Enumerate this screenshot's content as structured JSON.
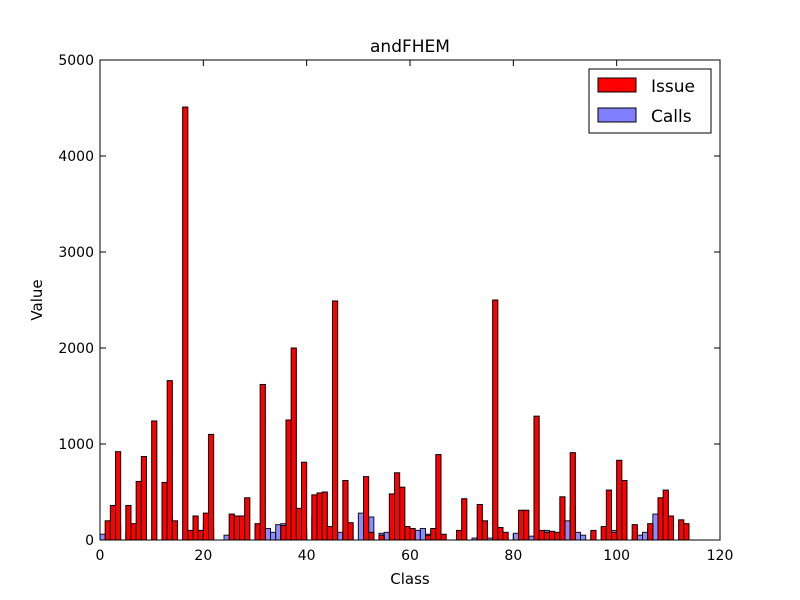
{
  "chart_data": {
    "type": "bar",
    "title": "andFHEM",
    "xlabel": "Class",
    "ylabel": "Value",
    "xlim": [
      0,
      120
    ],
    "ylim": [
      0,
      5000
    ],
    "xticks": [
      "0",
      "20",
      "40",
      "60",
      "80",
      "100",
      "120"
    ],
    "yticks": [
      "0",
      "1000",
      "2000",
      "3000",
      "4000",
      "5000"
    ],
    "legend_position": "top-right",
    "grid": false,
    "series": [
      {
        "name": "Issue",
        "color": "#ff0000",
        "values": [
          0,
          200,
          360,
          920,
          0,
          360,
          170,
          610,
          870,
          0,
          1240,
          0,
          600,
          1660,
          200,
          0,
          4510,
          100,
          250,
          100,
          280,
          1100,
          0,
          0,
          0,
          270,
          250,
          250,
          440,
          0,
          170,
          1620,
          0,
          0,
          0,
          150,
          1250,
          2000,
          330,
          810,
          0,
          470,
          490,
          500,
          140,
          2490,
          0,
          620,
          180,
          0,
          0,
          660,
          80,
          0,
          50,
          0,
          480,
          700,
          550,
          140,
          120,
          0,
          0,
          50,
          120,
          890,
          60,
          0,
          0,
          100,
          430,
          0,
          0,
          370,
          200,
          0,
          2500,
          130,
          80,
          0,
          0,
          310,
          310,
          0,
          1290,
          100,
          80,
          90,
          80,
          450,
          0,
          910,
          0,
          0,
          0,
          100,
          0,
          140,
          520,
          80,
          830,
          620,
          0,
          160,
          0,
          0,
          170,
          0,
          440,
          520,
          250,
          0,
          210,
          170,
          0
        ]
      },
      {
        "name": "Calls",
        "color": "#8080ff",
        "values": [
          60,
          0,
          0,
          150,
          0,
          80,
          80,
          120,
          180,
          0,
          0,
          0,
          0,
          240,
          0,
          0,
          0,
          0,
          0,
          0,
          150,
          120,
          0,
          0,
          50,
          0,
          220,
          0,
          0,
          0,
          50,
          0,
          120,
          80,
          160,
          170,
          390,
          0,
          100,
          120,
          0,
          240,
          0,
          0,
          0,
          0,
          80,
          60,
          0,
          0,
          280,
          200,
          240,
          0,
          70,
          80,
          0,
          0,
          0,
          0,
          0,
          100,
          120,
          60,
          0,
          0,
          0,
          0,
          0,
          0,
          0,
          0,
          20,
          40,
          60,
          20,
          0,
          50,
          0,
          0,
          70,
          0,
          0,
          40,
          0,
          0,
          100,
          80,
          0,
          0,
          200,
          350,
          80,
          50,
          0,
          60,
          0,
          0,
          0,
          100,
          80,
          0,
          0,
          30,
          50,
          80,
          120,
          270,
          0,
          0,
          0,
          0,
          0,
          150,
          0
        ]
      }
    ]
  }
}
